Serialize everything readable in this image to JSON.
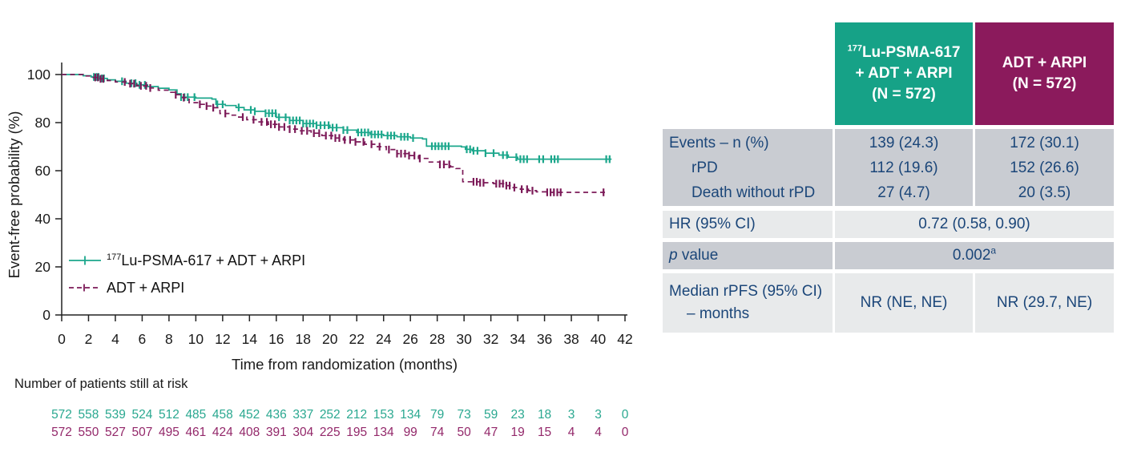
{
  "chart": {
    "at_risk_title": "Number of patients still at risk",
    "legend": {
      "lu": {
        "sup": "177",
        "label": "Lu-PSMA-617 + ADT + ARPI"
      },
      "adt": {
        "label": "ADT + ARPI"
      }
    }
  },
  "chart_data": {
    "type": "line",
    "subtype": "kaplan-meier-step",
    "title": "",
    "xlabel": "Time from randomization (months)",
    "ylabel": "Event-free probability (%)",
    "xlim": [
      0,
      42
    ],
    "ylim": [
      0,
      100
    ],
    "x_ticks": [
      0,
      2,
      4,
      6,
      8,
      10,
      12,
      14,
      16,
      18,
      20,
      22,
      24,
      26,
      28,
      30,
      32,
      34,
      36,
      38,
      40,
      42
    ],
    "y_ticks": [
      0,
      20,
      40,
      60,
      80,
      100
    ],
    "grid": false,
    "legend_position": "inside-lower-left",
    "series": [
      {
        "name": "177Lu-PSMA-617 + ADT + ARPI",
        "color": "#1CA78C",
        "line_style": "solid",
        "steps": [
          [
            1.6,
            99.5
          ],
          [
            2.2,
            99
          ],
          [
            2.8,
            98.4
          ],
          [
            3.4,
            97.8
          ],
          [
            4.0,
            97.2
          ],
          [
            4.8,
            96.4
          ],
          [
            5.6,
            95.7
          ],
          [
            6.4,
            95.0
          ],
          [
            7.2,
            94.3
          ],
          [
            8.0,
            93.6
          ],
          [
            8.6,
            92.0
          ],
          [
            8.9,
            90.6
          ],
          [
            10.0,
            90.2
          ],
          [
            11.2,
            89.8
          ],
          [
            11.5,
            87.6
          ],
          [
            12.2,
            87.1
          ],
          [
            13.0,
            86.3
          ],
          [
            13.6,
            85.3
          ],
          [
            14.4,
            84.7
          ],
          [
            15.2,
            83.9
          ],
          [
            16.0,
            82.2
          ],
          [
            17.0,
            80.9
          ],
          [
            18.0,
            79.6
          ],
          [
            19.0,
            78.9
          ],
          [
            20.0,
            77.9
          ],
          [
            21.0,
            76.9
          ],
          [
            22.0,
            75.9
          ],
          [
            23.0,
            75.1
          ],
          [
            24.0,
            74.6
          ],
          [
            25.0,
            74.1
          ],
          [
            26.0,
            73.6
          ],
          [
            26.9,
            73.2
          ],
          [
            27.2,
            70.2
          ],
          [
            29.8,
            69.9
          ],
          [
            30.1,
            68.9
          ],
          [
            30.6,
            68.3
          ],
          [
            31.6,
            67.3
          ],
          [
            32.6,
            66.5
          ],
          [
            33.3,
            65.6
          ],
          [
            34.0,
            64.8
          ],
          [
            41.0,
            64.8
          ]
        ],
        "censor_times": [
          2.4,
          2.6,
          2.75,
          3.0,
          3.15,
          4.5,
          5.2,
          5.5,
          5.8,
          6.2,
          8.9,
          9.15,
          9.4,
          9.9,
          11.6,
          12.0,
          13.2,
          14.1,
          14.4,
          15.2,
          15.45,
          15.7,
          15.95,
          16.2,
          16.7,
          17.0,
          17.25,
          17.5,
          17.75,
          18.0,
          18.25,
          18.5,
          18.75,
          19.0,
          19.3,
          19.6,
          19.9,
          20.2,
          20.5,
          21.0,
          21.3,
          22.1,
          22.35,
          22.6,
          22.85,
          23.1,
          23.35,
          23.6,
          23.85,
          24.3,
          24.55,
          24.8,
          25.3,
          25.55,
          25.8,
          26.2,
          27.6,
          27.85,
          28.1,
          28.35,
          28.6,
          28.85,
          30.2,
          30.45,
          30.7,
          31.0,
          31.6,
          32.2,
          32.9,
          33.2,
          33.9,
          34.2,
          34.45,
          34.7,
          35.6,
          35.9,
          36.5,
          36.75,
          37.0,
          40.6,
          40.85
        ],
        "at_risk": [
          572,
          558,
          539,
          524,
          512,
          485,
          458,
          452,
          436,
          337,
          252,
          212,
          153,
          134,
          79,
          73,
          59,
          23,
          18,
          3,
          3,
          0
        ],
        "at_risk_color": "#2AA890"
      },
      {
        "name": "ADT + ARPI",
        "color": "#7C1A58",
        "line_style": "dashed",
        "steps": [
          [
            1.6,
            99.4
          ],
          [
            2.2,
            98.8
          ],
          [
            2.8,
            98.2
          ],
          [
            3.4,
            97.5
          ],
          [
            4.0,
            96.9
          ],
          [
            4.8,
            96.2
          ],
          [
            5.6,
            95.3
          ],
          [
            6.4,
            94.4
          ],
          [
            7.2,
            93.5
          ],
          [
            8.0,
            92.6
          ],
          [
            8.5,
            91.6
          ],
          [
            9.0,
            90.4
          ],
          [
            9.5,
            88.3
          ],
          [
            10.2,
            87.6
          ],
          [
            10.8,
            86.9
          ],
          [
            11.3,
            86.2
          ],
          [
            11.8,
            83.8
          ],
          [
            12.6,
            83.1
          ],
          [
            13.2,
            82.3
          ],
          [
            13.8,
            81.2
          ],
          [
            14.6,
            80.3
          ],
          [
            15.4,
            79.3
          ],
          [
            16.2,
            78.2
          ],
          [
            17.0,
            77.3
          ],
          [
            17.8,
            76.6
          ],
          [
            18.6,
            75.6
          ],
          [
            19.4,
            74.6
          ],
          [
            20.2,
            73.6
          ],
          [
            21.0,
            72.8
          ],
          [
            21.8,
            72.0
          ],
          [
            22.6,
            71.0
          ],
          [
            23.4,
            70.0
          ],
          [
            24.2,
            68.8
          ],
          [
            25.0,
            67.1
          ],
          [
            25.8,
            66.3
          ],
          [
            26.6,
            65.1
          ],
          [
            27.4,
            63.6
          ],
          [
            28.2,
            62.6
          ],
          [
            29.0,
            61.6
          ],
          [
            29.4,
            60.9
          ],
          [
            29.9,
            55.4
          ],
          [
            31.2,
            55.0
          ],
          [
            32.2,
            54.6
          ],
          [
            33.0,
            53.8
          ],
          [
            33.6,
            53.0
          ],
          [
            34.2,
            52.3
          ],
          [
            34.8,
            51.7
          ],
          [
            35.4,
            51.2
          ],
          [
            36.2,
            51.0
          ],
          [
            40.6,
            51.0
          ]
        ],
        "censor_times": [
          2.5,
          2.7,
          2.9,
          3.1,
          4.7,
          5.1,
          5.4,
          5.9,
          6.3,
          6.6,
          8.5,
          9.1,
          10.3,
          10.8,
          11.3,
          12.2,
          13.5,
          14.3,
          14.9,
          15.3,
          15.6,
          15.9,
          16.2,
          16.6,
          17.0,
          17.4,
          17.9,
          18.3,
          18.8,
          19.2,
          19.7,
          20.1,
          20.4,
          20.7,
          21.1,
          21.5,
          21.9,
          22.5,
          23.1,
          23.7,
          24.4,
          25.0,
          25.3,
          25.6,
          25.9,
          26.3,
          26.7,
          28.2,
          28.5,
          28.9,
          30.7,
          30.95,
          31.2,
          31.45,
          32.4,
          32.65,
          32.9,
          33.15,
          33.4,
          33.75,
          34.3,
          34.7,
          35.1,
          36.2,
          36.45,
          36.7,
          36.95,
          37.2,
          40.4
        ],
        "at_risk": [
          572,
          550,
          527,
          507,
          495,
          461,
          424,
          408,
          391,
          304,
          225,
          195,
          134,
          99,
          74,
          50,
          47,
          19,
          15,
          4,
          4,
          0
        ],
        "at_risk_color": "#93286A"
      }
    ]
  },
  "table": {
    "col1": {
      "sup": "177",
      "line1": "Lu-PSMA-617",
      "line2": "+ ADT + ARPI",
      "line3": "(N = 572)",
      "color": "#16A287"
    },
    "col2": {
      "line1": "ADT + ARPI",
      "line2": "(N = 572)",
      "color": "#8B1A5C"
    },
    "rows": {
      "events": {
        "label": "Events – n (%)",
        "sub1": "rPD",
        "sub2": "Death without rPD",
        "col1": [
          "139 (24.3)",
          "112 (19.6)",
          "27 (4.7)"
        ],
        "col2": [
          "172 (30.1)",
          "152 (26.6)",
          "20 (3.5)"
        ]
      },
      "hr": {
        "label": "HR (95% CI)",
        "value": "0.72 (0.58, 0.90)"
      },
      "p": {
        "label_italic": "p",
        "label_rest": " value",
        "value": "0.002",
        "footnote": "a"
      },
      "median": {
        "label_line1": "Median rPFS (95% CI)",
        "label_line2": "– months",
        "col1": "NR (NE, NE)",
        "col2": "NR (29.7, NE)"
      }
    }
  }
}
